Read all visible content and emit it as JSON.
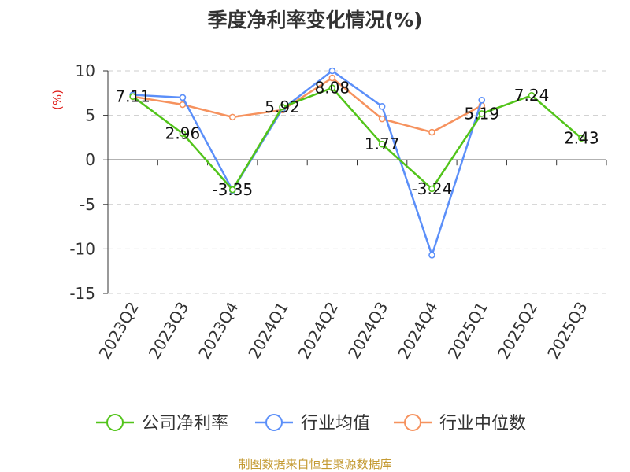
{
  "chart_data": {
    "type": "line",
    "title": "季度净利率变化情况(%)",
    "ylabel": "(%)",
    "xlabel": "",
    "categories": [
      "2023Q2",
      "2023Q3",
      "2023Q4",
      "2024Q1",
      "2024Q2",
      "2024Q3",
      "2024Q4",
      "2025Q1",
      "2025Q2",
      "2025Q3"
    ],
    "ylim": [
      -15,
      10
    ],
    "yticks": [
      10,
      5,
      0,
      -5,
      -10,
      -15
    ],
    "grid": true,
    "legend_position": "bottom",
    "series": [
      {
        "name": "公司净利率",
        "color": "#52c41a",
        "values": [
          7.11,
          2.96,
          -3.35,
          5.92,
          8.08,
          1.77,
          -3.24,
          5.19,
          7.24,
          2.43
        ],
        "labels": [
          "7.11",
          "2.96",
          "-3.35",
          "5.92",
          "8.08",
          "1.77",
          "-3.24",
          "5.19",
          "7.24",
          "2.43"
        ]
      },
      {
        "name": "行业均值",
        "color": "#5b8ff9",
        "values": [
          7.3,
          7.0,
          -3.4,
          5.7,
          10.0,
          6.0,
          -10.7,
          6.7,
          null,
          null
        ]
      },
      {
        "name": "行业中位数",
        "color": "#f6925e",
        "values": [
          7.1,
          6.2,
          4.8,
          5.6,
          9.2,
          4.6,
          3.1,
          6.1,
          null,
          null
        ]
      }
    ]
  },
  "footer": {
    "source": "制图数据来自恒生聚源数据库"
  }
}
